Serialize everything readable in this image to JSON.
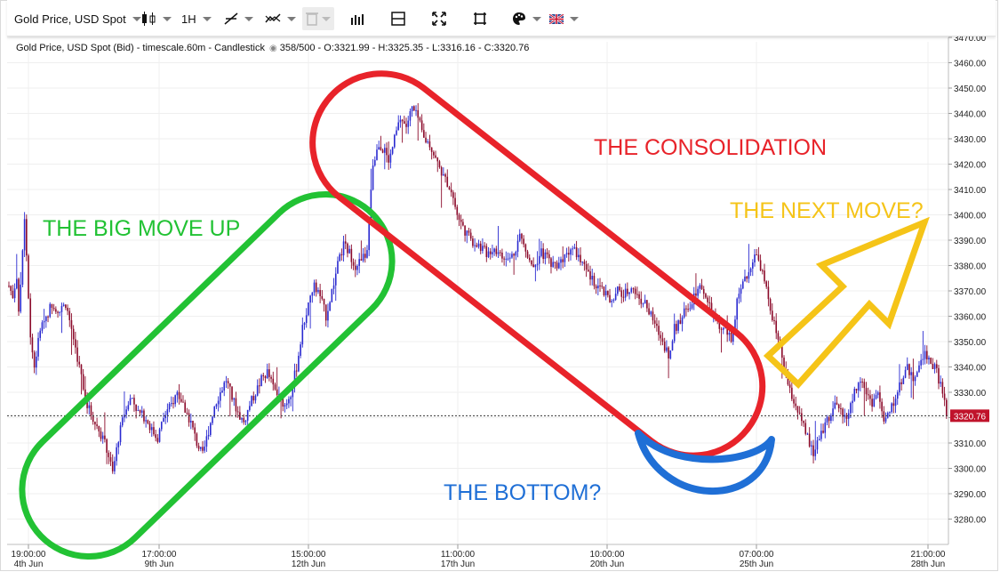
{
  "toolbar": {
    "instrument": "Gold Price, USD Spot",
    "timeframe": "1H",
    "items": [
      {
        "name": "chart-type-button",
        "icon": "candlestick-icon"
      },
      {
        "name": "timeframe-button",
        "icon": "none"
      },
      {
        "name": "draw-line-button",
        "icon": "trendline-icon"
      },
      {
        "name": "indicators-button",
        "icon": "indicator-icon"
      },
      {
        "name": "delete-button",
        "icon": "trash-icon"
      },
      {
        "name": "volume-button",
        "icon": "bars-icon"
      },
      {
        "name": "layout-button",
        "icon": "layout-icon"
      },
      {
        "name": "fullscreen-button",
        "icon": "expand-icon"
      },
      {
        "name": "fit-button",
        "icon": "fit-icon"
      },
      {
        "name": "theme-button",
        "icon": "palette-icon"
      },
      {
        "name": "language-button",
        "icon": "uk-flag-icon"
      }
    ]
  },
  "header": {
    "title": "Gold Price, USD Spot (Bid) - timescale.60m - Candlestick",
    "counter": "358/500",
    "ohlc": "- O:3321.99 - H:3325.35 - L:3316.16 - C:3320.76"
  },
  "chart_data": {
    "type": "candlestick",
    "instrument": "Gold Price, USD Spot (Bid)",
    "timescale": "60m",
    "y_axis": {
      "range": [
        3270,
        3470
      ],
      "ticks": [
        "3280.00",
        "3290.00",
        "3300.00",
        "3310.00",
        "3320.00",
        "3330.00",
        "3340.00",
        "3350.00",
        "3360.00",
        "3370.00",
        "3380.00",
        "3390.00",
        "3400.00",
        "3410.00",
        "3420.00",
        "3430.00",
        "3440.00",
        "3450.00",
        "3460.00",
        "3470.00"
      ]
    },
    "x_axis": {
      "ticks": [
        {
          "time": "19:00:00",
          "date": "4th Jun"
        },
        {
          "time": "17:00:00",
          "date": "9th Jun"
        },
        {
          "time": "15:00:00",
          "date": "12th Jun"
        },
        {
          "time": "11:00:00",
          "date": "17th Jun"
        },
        {
          "time": "10:00:00",
          "date": "20th Jun"
        },
        {
          "time": "07:00:00",
          "date": "25th Jun"
        },
        {
          "time": "21:00:00",
          "date": "28th Jun"
        }
      ]
    },
    "last_price": "3320.76",
    "last_price_value": 3320.76,
    "series_path": [
      [
        0,
        3372
      ],
      [
        2,
        3368
      ],
      [
        4,
        3376
      ],
      [
        5,
        3360
      ],
      [
        8,
        3400
      ],
      [
        9,
        3385
      ],
      [
        11,
        3352
      ],
      [
        13,
        3340
      ],
      [
        16,
        3355
      ],
      [
        19,
        3360
      ],
      [
        22,
        3365
      ],
      [
        26,
        3362
      ],
      [
        29,
        3365
      ],
      [
        32,
        3355
      ],
      [
        36,
        3340
      ],
      [
        40,
        3325
      ],
      [
        44,
        3318
      ],
      [
        48,
        3312
      ],
      [
        51,
        3305
      ],
      [
        53,
        3298
      ],
      [
        56,
        3312
      ],
      [
        60,
        3325
      ],
      [
        63,
        3328
      ],
      [
        66,
        3322
      ],
      [
        70,
        3320
      ],
      [
        73,
        3315
      ],
      [
        76,
        3312
      ],
      [
        79,
        3320
      ],
      [
        83,
        3325
      ],
      [
        86,
        3330
      ],
      [
        89,
        3325
      ],
      [
        93,
        3318
      ],
      [
        96,
        3310
      ],
      [
        99,
        3305
      ],
      [
        102,
        3315
      ],
      [
        105,
        3325
      ],
      [
        108,
        3330
      ],
      [
        111,
        3335
      ],
      [
        114,
        3328
      ],
      [
        117,
        3322
      ],
      [
        120,
        3318
      ],
      [
        123,
        3325
      ],
      [
        126,
        3330
      ],
      [
        129,
        3335
      ],
      [
        132,
        3338
      ],
      [
        135,
        3332
      ],
      [
        138,
        3328
      ],
      [
        141,
        3325
      ],
      [
        144,
        3330
      ],
      [
        147,
        3340
      ],
      [
        150,
        3355
      ],
      [
        153,
        3365
      ],
      [
        156,
        3372
      ],
      [
        159,
        3368
      ],
      [
        162,
        3360
      ],
      [
        165,
        3370
      ],
      [
        168,
        3380
      ],
      [
        171,
        3388
      ],
      [
        174,
        3385
      ],
      [
        177,
        3380
      ],
      [
        180,
        3382
      ],
      [
        183,
        3385
      ],
      [
        186,
        3420
      ],
      [
        189,
        3428
      ],
      [
        192,
        3425
      ],
      [
        194,
        3420
      ],
      [
        197,
        3430
      ],
      [
        200,
        3438
      ],
      [
        203,
        3435
      ],
      [
        206,
        3442
      ],
      [
        209,
        3438
      ],
      [
        212,
        3430
      ],
      [
        215,
        3428
      ],
      [
        218,
        3422
      ],
      [
        222,
        3415
      ],
      [
        226,
        3410
      ],
      [
        229,
        3400
      ],
      [
        232,
        3395
      ],
      [
        236,
        3390
      ],
      [
        240,
        3388
      ],
      [
        244,
        3385
      ],
      [
        248,
        3387
      ],
      [
        252,
        3383
      ],
      [
        255,
        3382
      ],
      [
        258,
        3385
      ],
      [
        261,
        3392
      ],
      [
        264,
        3386
      ],
      [
        268,
        3380
      ],
      [
        272,
        3385
      ],
      [
        275,
        3383
      ],
      [
        279,
        3380
      ],
      [
        283,
        3383
      ],
      [
        287,
        3387
      ],
      [
        290,
        3385
      ],
      [
        293,
        3380
      ],
      [
        297,
        3375
      ],
      [
        301,
        3372
      ],
      [
        305,
        3368
      ],
      [
        308,
        3365
      ],
      [
        311,
        3370
      ],
      [
        314,
        3368
      ],
      [
        318,
        3372
      ],
      [
        321,
        3368
      ],
      [
        325,
        3365
      ],
      [
        328,
        3360
      ],
      [
        331,
        3355
      ],
      [
        334,
        3350
      ],
      [
        337,
        3345
      ],
      [
        340,
        3355
      ],
      [
        344,
        3360
      ],
      [
        348,
        3365
      ],
      [
        351,
        3370
      ],
      [
        354,
        3372
      ],
      [
        357,
        3365
      ],
      [
        360,
        3360
      ],
      [
        363,
        3355
      ],
      [
        366,
        3355
      ],
      [
        369,
        3350
      ],
      [
        372,
        3365
      ],
      [
        375,
        3372
      ],
      [
        378,
        3378
      ],
      [
        381,
        3385
      ],
      [
        384,
        3380
      ],
      [
        387,
        3370
      ],
      [
        390,
        3360
      ],
      [
        393,
        3350
      ],
      [
        396,
        3340
      ],
      [
        399,
        3330
      ],
      [
        402,
        3325
      ],
      [
        405,
        3318
      ],
      [
        408,
        3312
      ],
      [
        411,
        3305
      ],
      [
        414,
        3312
      ],
      [
        417,
        3318
      ],
      [
        420,
        3322
      ],
      [
        423,
        3325
      ],
      [
        426,
        3320
      ],
      [
        429,
        3322
      ],
      [
        432,
        3330
      ],
      [
        435,
        3335
      ],
      [
        438,
        3330
      ],
      [
        441,
        3326
      ],
      [
        444,
        3330
      ],
      [
        447,
        3318
      ],
      [
        450,
        3322
      ],
      [
        453,
        3328
      ],
      [
        456,
        3335
      ],
      [
        459,
        3340
      ],
      [
        462,
        3335
      ],
      [
        465,
        3340
      ],
      [
        468,
        3346
      ],
      [
        471,
        3342
      ],
      [
        474,
        3338
      ],
      [
        477,
        3330
      ],
      [
        479,
        3321
      ]
    ]
  },
  "annotations": {
    "big_move": {
      "label": "THE BIG MOVE UP",
      "color": "#22c234"
    },
    "consolidation": {
      "label": "THE CONSOLIDATION",
      "color": "#e8232a"
    },
    "next_move": {
      "label": "THE NEXT MOVE?",
      "color": "#f5c418"
    },
    "bottom": {
      "label": "THE BOTTOM?",
      "color": "#1f6fd6"
    }
  },
  "colors": {
    "up": "#2a2ad0",
    "down": "#8b0a2a",
    "grid": "#e6e6e6",
    "price_tag": "#c0132b"
  }
}
